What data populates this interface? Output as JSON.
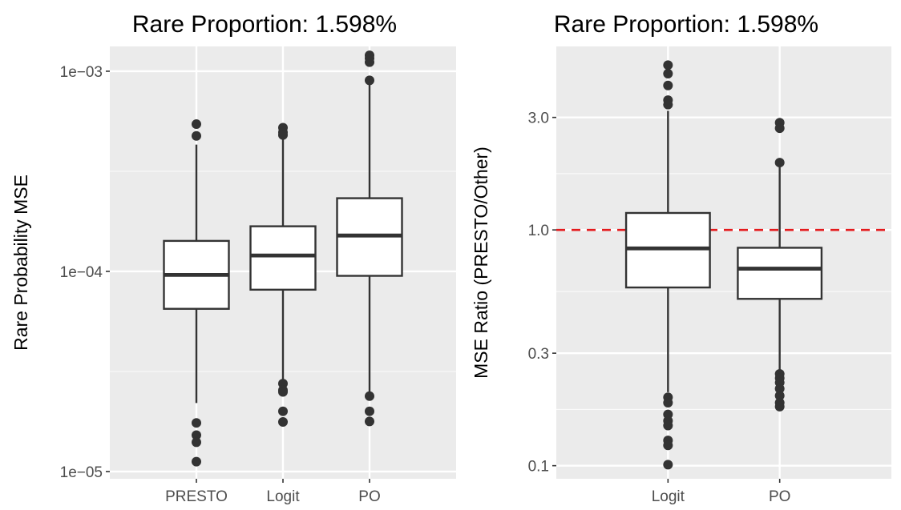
{
  "chart_data": [
    {
      "type": "box",
      "title": "Rare Proportion: 1.598%",
      "xlabel": "",
      "ylabel": "Rare Probability MSE",
      "yscale": "log",
      "ylim": [
        9.2e-06,
        0.00133
      ],
      "yticks": [
        {
          "value": 1e-05,
          "label": "1e−05"
        },
        {
          "value": 0.0001,
          "label": "1e−04"
        },
        {
          "value": 0.001,
          "label": "1e−03"
        }
      ],
      "grid": true,
      "categories": [
        "PRESTO",
        "Logit",
        "PO"
      ],
      "boxes": [
        {
          "category": "PRESTO",
          "lower_whisker": 2.2e-05,
          "q1": 6.5e-05,
          "median": 9.6e-05,
          "q3": 0.000142,
          "upper_whisker": 0.00043,
          "outliers": [
            0.000544,
            0.000475,
            1.75e-05,
            1.52e-05,
            1.4e-05,
            1.12e-05
          ]
        },
        {
          "category": "Logit",
          "lower_whisker": 2.85e-05,
          "q1": 8.1e-05,
          "median": 0.00012,
          "q3": 0.000168,
          "upper_whisker": 0.000466,
          "outliers": [
            0.000522,
            0.000495,
            0.00048,
            2.75e-05,
            2.55e-05,
            2.5e-05,
            2e-05,
            1.77e-05
          ]
        },
        {
          "category": "PO",
          "lower_whisker": 2.5e-05,
          "q1": 9.5e-05,
          "median": 0.000151,
          "q3": 0.000232,
          "upper_whisker": 0.00088,
          "outliers": [
            0.0012,
            0.00116,
            0.00111,
            0.0009,
            2.38e-05,
            2e-05,
            1.78e-05
          ]
        }
      ]
    },
    {
      "type": "box",
      "title": "Rare Proportion: 1.598%",
      "xlabel": "",
      "ylabel": "MSE Ratio (PRESTO/Other)",
      "yscale": "log",
      "ylim": [
        0.088,
        6.0
      ],
      "yticks": [
        {
          "value": 0.1,
          "label": "0.1"
        },
        {
          "value": 0.3,
          "label": "0.3"
        },
        {
          "value": 1.0,
          "label": "1.0"
        },
        {
          "value": 3.0,
          "label": "3.0"
        }
      ],
      "grid": true,
      "reference_line": {
        "value": 1.0,
        "color": "#e41a1c",
        "style": "dashed"
      },
      "categories": [
        "Logit",
        "PO"
      ],
      "boxes": [
        {
          "category": "Logit",
          "lower_whisker": 0.205,
          "q1": 0.57,
          "median": 0.835,
          "q3": 1.18,
          "upper_whisker": 3.2,
          "outliers": [
            5.0,
            4.6,
            4.1,
            3.55,
            3.4,
            0.195,
            0.185,
            0.165,
            0.155,
            0.148,
            0.128,
            0.122,
            0.101
          ]
        },
        {
          "category": "PO",
          "lower_whisker": 0.25,
          "q1": 0.51,
          "median": 0.685,
          "q3": 0.84,
          "upper_whisker": 1.93,
          "outliers": [
            2.85,
            2.7,
            1.93,
            0.245,
            0.235,
            0.225,
            0.212,
            0.198,
            0.185,
            0.178
          ]
        }
      ]
    }
  ]
}
